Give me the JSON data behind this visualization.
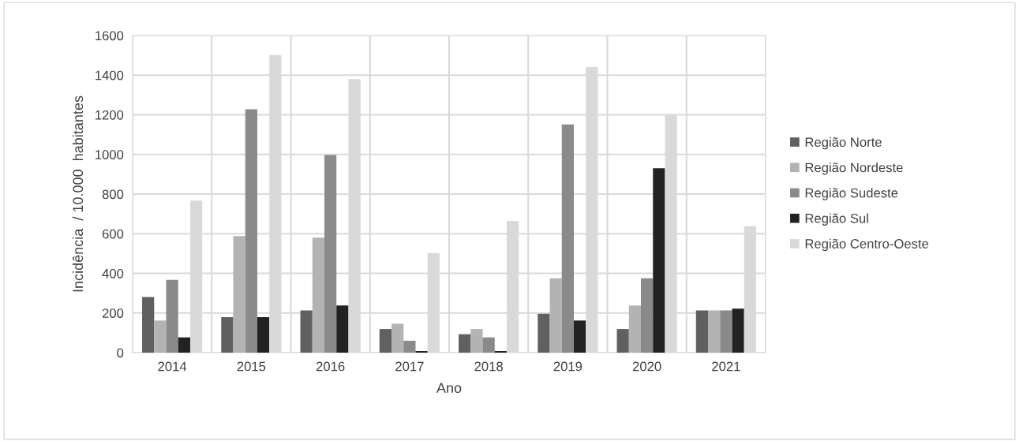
{
  "chart_data": {
    "type": "bar",
    "xlabel": "Ano",
    "ylabel": "Incidência  / 10.000  habitantes",
    "categories": [
      "2014",
      "2015",
      "2016",
      "2017",
      "2018",
      "2019",
      "2020",
      "2021"
    ],
    "series": [
      {
        "name": "Região Norte",
        "color": "#606060",
        "values": [
          281,
          179,
          213,
          119,
          93,
          196,
          119,
          213
        ]
      },
      {
        "name": "Região Nordeste",
        "color": "#b3b3b3",
        "values": [
          162,
          588,
          580,
          146,
          119,
          375,
          238,
          213
        ]
      },
      {
        "name": "Região Sudeste",
        "color": "#8a8a8a",
        "values": [
          367,
          1228,
          997,
          60,
          77,
          1151,
          375,
          213
        ]
      },
      {
        "name": "Região Sul",
        "color": "#222222",
        "values": [
          77,
          179,
          238,
          8,
          8,
          162,
          930,
          222
        ]
      },
      {
        "name": "Região Centro-Oeste",
        "color": "#d9d9d9",
        "values": [
          767,
          1501,
          1380,
          502,
          665,
          1441,
          1197,
          638
        ]
      }
    ],
    "ylim": [
      0,
      1600
    ],
    "yticks": [
      0,
      200,
      400,
      600,
      800,
      1000,
      1200,
      1400,
      1600
    ],
    "grid": true,
    "legend": "right"
  }
}
